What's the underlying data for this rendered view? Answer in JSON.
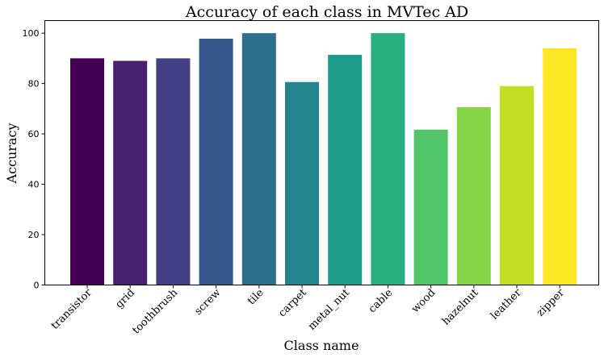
{
  "chart_data": {
    "type": "bar",
    "title": "Accuracy of each class in MVTec AD",
    "xlabel": "Class name",
    "ylabel": "Accuracy",
    "ylim": [
      0,
      105
    ],
    "yticks": [
      0,
      20,
      40,
      60,
      80,
      100
    ],
    "categories": [
      "transistor",
      "grid",
      "toothbrush",
      "screw",
      "tile",
      "carpet",
      "metal_nut",
      "cable",
      "wood",
      "hazelnut",
      "leather",
      "zipper"
    ],
    "values": [
      90,
      89,
      90,
      97.8,
      100,
      80.6,
      91.4,
      100,
      61.7,
      70.6,
      79,
      94
    ],
    "colors": [
      "#440154",
      "#482173",
      "#433e85",
      "#38598c",
      "#2d708e",
      "#25858e",
      "#1e9b8a",
      "#2ab07f",
      "#52c569",
      "#86d549",
      "#c2df23",
      "#fde725"
    ],
    "grid": false,
    "legend": "none"
  }
}
